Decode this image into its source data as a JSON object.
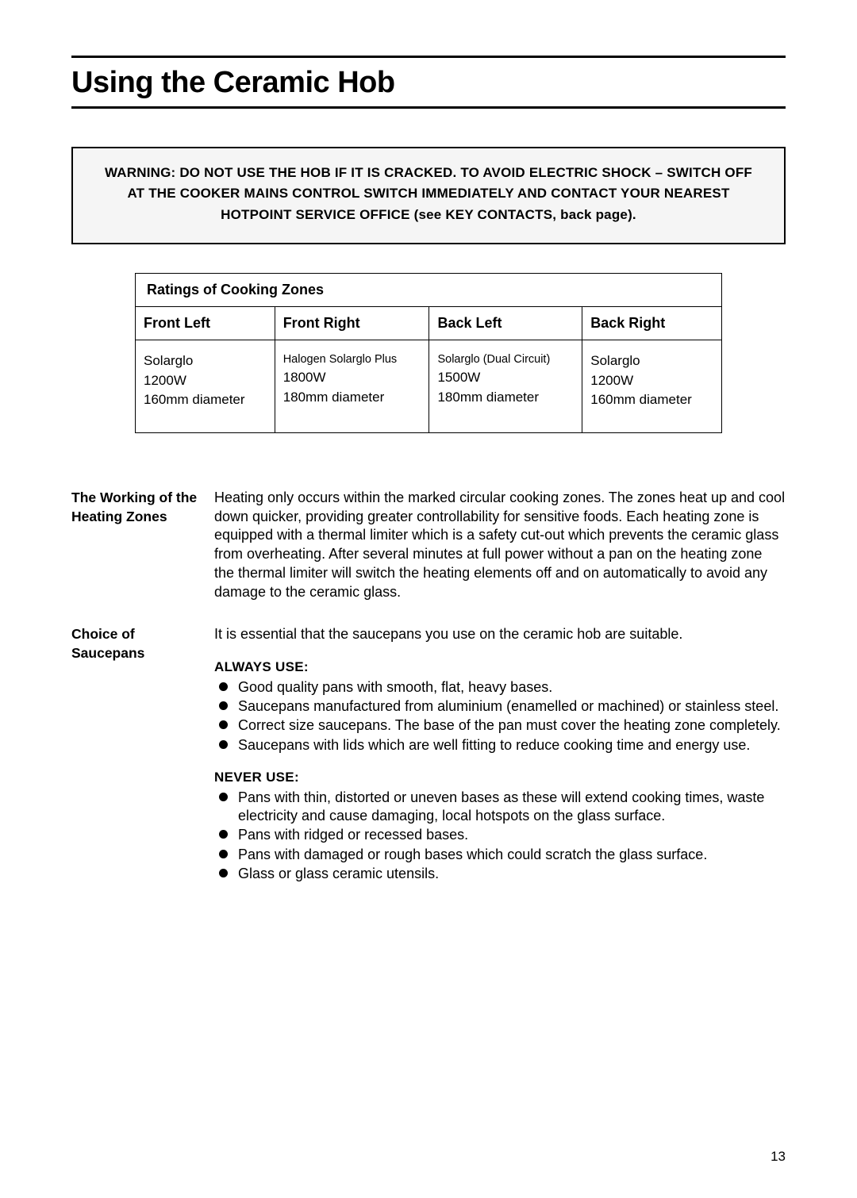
{
  "title": "Using the Ceramic Hob",
  "warning": "WARNING: DO NOT USE THE HOB IF IT IS CRACKED. TO AVOID ELECTRIC SHOCK – SWITCH OFF AT THE COOKER MAINS CONTROL SWITCH IMMEDIATELY AND CONTACT YOUR NEAREST HOTPOINT SERVICE OFFICE (see KEY CONTACTS, back page).",
  "ratings": {
    "caption": "Ratings of Cooking Zones",
    "headers": [
      "Front Left",
      "Front Right",
      "Back Left",
      "Back Right"
    ],
    "zones": [
      {
        "type": "Solarglo",
        "type_small": false,
        "watts": "1200W",
        "diameter": "160mm diameter"
      },
      {
        "type": "Halogen Solarglo Plus",
        "type_small": true,
        "watts": "1800W",
        "diameter": "180mm diameter"
      },
      {
        "type": "Solarglo (Dual Circuit)",
        "type_small": true,
        "watts": "1500W",
        "diameter": "180mm diameter"
      },
      {
        "type": "Solarglo",
        "type_small": false,
        "watts": "1200W",
        "diameter": "160mm diameter"
      }
    ]
  },
  "sections": {
    "heating": {
      "label": "The Working of the Heating Zones",
      "body": "Heating only occurs within the marked circular cooking zones. The zones heat up and cool down quicker, providing greater controllability for sensitive foods. Each heating zone is equipped with a thermal limiter which is a safety cut-out which prevents the ceramic glass from overheating. After several minutes at full power without a pan on the heating zone the thermal limiter will switch the heating elements off and on automatically to avoid any damage to the ceramic glass."
    },
    "saucepans": {
      "label": "Choice of Saucepans",
      "intro": "It is essential that the saucepans you use on the ceramic hob are suitable.",
      "always_label": "ALWAYS USE:",
      "always": [
        "Good quality pans with smooth, flat, heavy bases.",
        "Saucepans manufactured from aluminium (enamelled or machined) or stainless steel.",
        "Correct size saucepans. The base of the pan must cover the heating zone completely.",
        "Saucepans with lids which are well fitting to reduce cooking time and energy use."
      ],
      "never_label": "NEVER USE:",
      "never": [
        "Pans with thin, distorted or uneven bases as these will extend cooking times, waste electricity and cause damaging, local hotspots on the glass surface.",
        "Pans with ridged or recessed bases.",
        "Pans with damaged or rough bases which could scratch the glass surface.",
        "Glass or glass ceramic utensils."
      ]
    }
  },
  "page_number": "13"
}
